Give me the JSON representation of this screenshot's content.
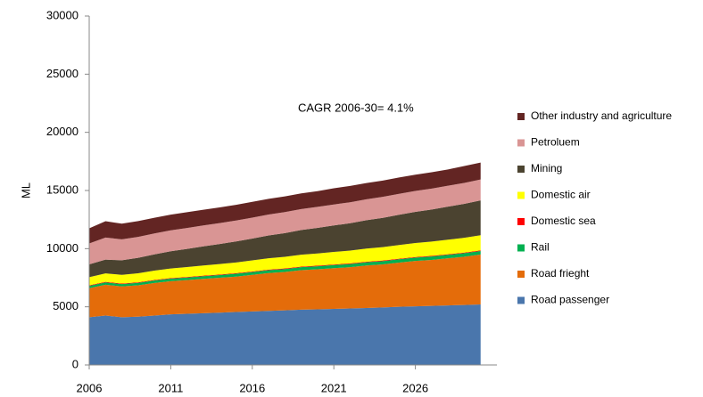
{
  "chart_data": {
    "type": "stacked-area",
    "ylabel": "ML",
    "annotation": "CAGR 2006-30= 4.1%",
    "x": [
      2006,
      2007,
      2008,
      2009,
      2010,
      2011,
      2012,
      2013,
      2014,
      2015,
      2016,
      2017,
      2018,
      2019,
      2020,
      2021,
      2022,
      2023,
      2024,
      2025,
      2026,
      2027,
      2028,
      2029,
      2030
    ],
    "xlim": [
      2006,
      2031
    ],
    "xticks": [
      2006,
      2011,
      2016,
      2021,
      2026
    ],
    "ylim": [
      0,
      30000
    ],
    "yticks": [
      0,
      5000,
      10000,
      15000,
      20000,
      25000,
      30000
    ],
    "series": [
      {
        "name": "Road passenger",
        "color": "#4a76ac",
        "values": [
          4100,
          4250,
          4100,
          4150,
          4250,
          4350,
          4400,
          4450,
          4500,
          4550,
          4600,
          4650,
          4700,
          4750,
          4780,
          4820,
          4860,
          4900,
          4950,
          5000,
          5040,
          5080,
          5120,
          5160,
          5200
        ]
      },
      {
        "name": "Road frieght",
        "color": "#e46c0a",
        "values": [
          2500,
          2650,
          2650,
          2700,
          2800,
          2850,
          2900,
          2950,
          3000,
          3050,
          3150,
          3250,
          3300,
          3400,
          3450,
          3500,
          3550,
          3650,
          3700,
          3800,
          3900,
          3950,
          4050,
          4150,
          4300
        ]
      },
      {
        "name": "Rail",
        "color": "#00b050",
        "values": [
          200,
          200,
          200,
          210,
          210,
          220,
          220,
          230,
          230,
          240,
          240,
          250,
          250,
          260,
          260,
          270,
          270,
          280,
          280,
          290,
          290,
          300,
          300,
          300,
          300
        ]
      },
      {
        "name": "Domestic sea",
        "color": "#ff0000",
        "values": [
          50,
          50,
          50,
          50,
          50,
          50,
          50,
          50,
          50,
          50,
          50,
          50,
          50,
          50,
          50,
          50,
          50,
          50,
          50,
          50,
          50,
          50,
          50,
          50,
          50
        ]
      },
      {
        "name": "Domestic air",
        "color": "#ffff00",
        "values": [
          700,
          725,
          750,
          775,
          800,
          825,
          850,
          875,
          900,
          925,
          950,
          975,
          1000,
          1025,
          1050,
          1075,
          1100,
          1125,
          1150,
          1175,
          1200,
          1225,
          1250,
          1275,
          1300
        ]
      },
      {
        "name": "Mining",
        "color": "#4b4330",
        "values": [
          1100,
          1180,
          1250,
          1330,
          1400,
          1480,
          1560,
          1640,
          1720,
          1800,
          1880,
          1960,
          2040,
          2120,
          2200,
          2280,
          2360,
          2440,
          2520,
          2600,
          2680,
          2760,
          2840,
          2920,
          3000
        ]
      },
      {
        "name": "Petroluem",
        "color": "#d99594",
        "values": [
          1800,
          1900,
          1800,
          1800,
          1800,
          1800,
          1800,
          1800,
          1800,
          1800,
          1800,
          1800,
          1800,
          1800,
          1800,
          1800,
          1800,
          1800,
          1800,
          1800,
          1800,
          1800,
          1800,
          1800,
          1800
        ]
      },
      {
        "name": "Other industry and agriculture",
        "color": "#632523",
        "values": [
          1300,
          1400,
          1350,
          1350,
          1350,
          1350,
          1350,
          1350,
          1350,
          1350,
          1350,
          1350,
          1350,
          1350,
          1350,
          1400,
          1400,
          1400,
          1400,
          1400,
          1400,
          1400,
          1400,
          1450,
          1450
        ]
      }
    ]
  }
}
